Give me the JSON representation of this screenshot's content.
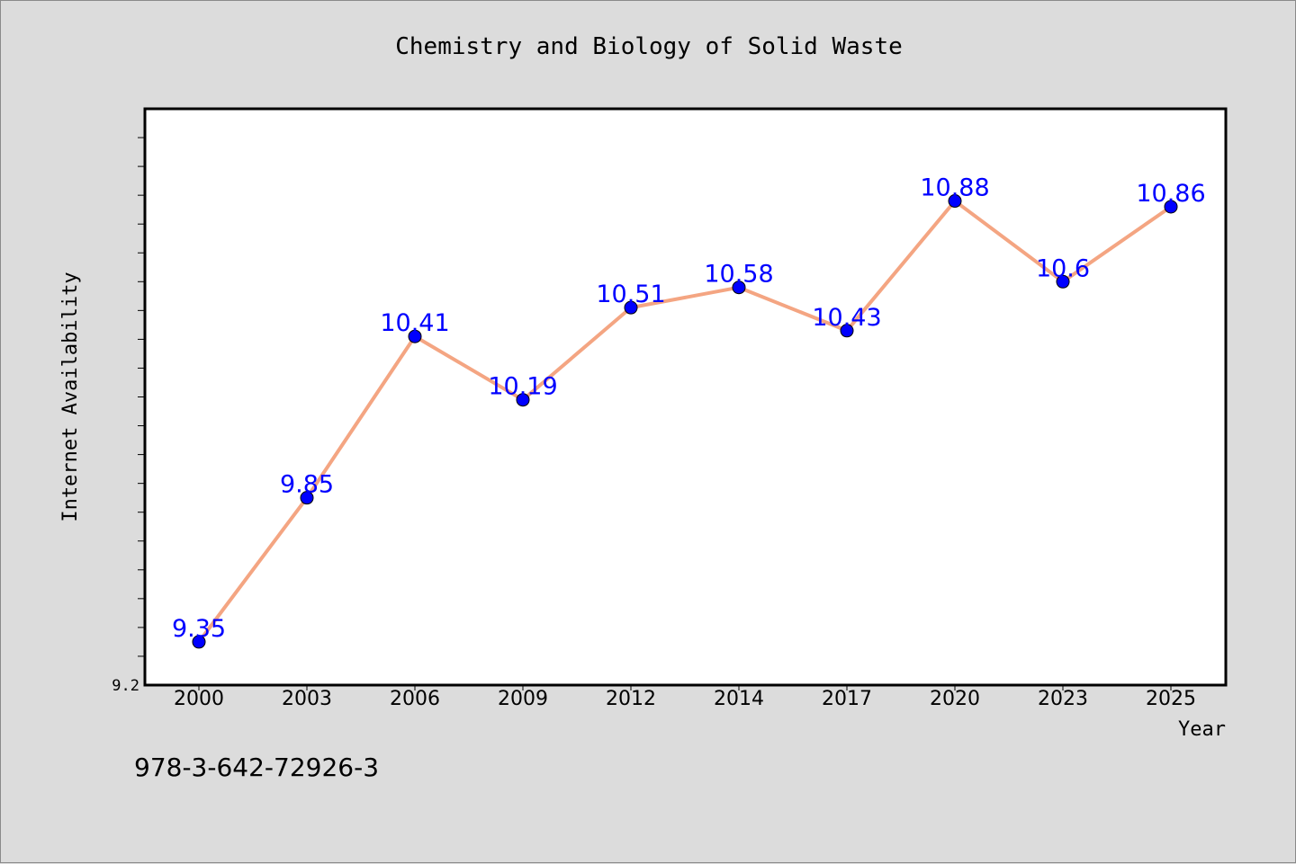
{
  "title": "Chemistry and Biology of Solid Waste",
  "footer_text": "978-3-642-72926-3",
  "chart_data": {
    "type": "line",
    "title": "Chemistry and Biology of Solid Waste",
    "xlabel": "Year",
    "ylabel": "Internet Availability",
    "categories": [
      "2000",
      "2003",
      "2006",
      "2009",
      "2012",
      "2014",
      "2017",
      "2020",
      "2023",
      "2025"
    ],
    "series": [
      {
        "values": [
          9.35,
          9.85,
          10.41,
          10.19,
          10.51,
          10.58,
          10.43,
          10.88,
          10.6,
          10.86
        ],
        "labels": [
          "9.35",
          "9.85",
          "10.41",
          "10.19",
          "10.51",
          "10.58",
          "10.43",
          "10.88",
          "10.6",
          "10.86"
        ],
        "line_color": "#f4a582",
        "marker_color": "#0000ff"
      }
    ],
    "ylim": [
      9.2,
      11.2
    ],
    "y_tick_labels": [
      "9.2"
    ],
    "y_minor_tick_step": 0.1,
    "grid": false,
    "legend": "none",
    "colors": {
      "plot_background": "#ffffff",
      "figure_background": "#dcdcdc",
      "data_label": "#0000ff"
    }
  }
}
